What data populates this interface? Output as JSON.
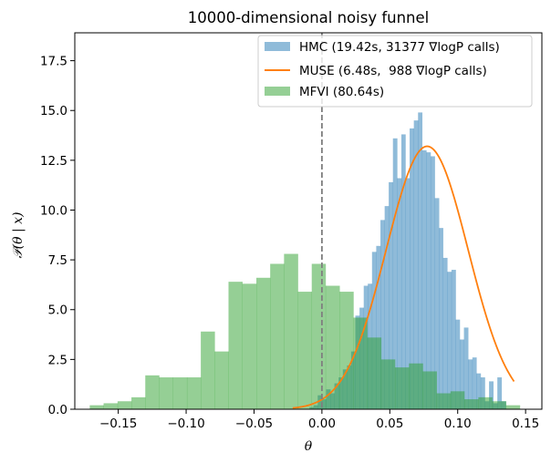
{
  "chart_data": {
    "type": "histogram",
    "title": "10000-dimensional noisy funnel",
    "xlabel": "θ",
    "ylabel": "𝒫(θ | x)",
    "xlim": [
      -0.182,
      0.162
    ],
    "ylim": [
      0,
      18.9
    ],
    "xticks": [
      -0.15,
      -0.1,
      -0.05,
      0.0,
      0.05,
      0.1,
      0.15
    ],
    "xtick_labels": [
      "−0.15",
      "−0.10",
      "−0.05",
      "0.00",
      "0.05",
      "0.10",
      "0.15"
    ],
    "yticks": [
      0.0,
      2.5,
      5.0,
      7.5,
      10.0,
      12.5,
      15.0,
      17.5
    ],
    "ytick_labels": [
      "0.0",
      "2.5",
      "5.0",
      "7.5",
      "10.0",
      "12.5",
      "15.0",
      "17.5"
    ],
    "reference_line": {
      "x": 0.0,
      "style": "dashed",
      "color": "#7f7f7f"
    },
    "legend_position": "top-right",
    "colors": {
      "hmc": "#1f77b4",
      "muse": "#ff7f0e",
      "mfvi": "#2ca02c"
    },
    "series": [
      {
        "name": "HMC (19.42s, 31377 ∇logP calls)",
        "kind": "histogram",
        "bins": [
          [
            -0.0185,
            -0.0154,
            0.0
          ],
          [
            -0.0154,
            -0.0123,
            0.0
          ],
          [
            -0.0123,
            -0.0092,
            0.0
          ],
          [
            -0.0092,
            -0.0062,
            0.1
          ],
          [
            -0.0062,
            -0.0031,
            0.2
          ],
          [
            -0.0031,
            0.0,
            0.7
          ],
          [
            0.0,
            0.0031,
            0.5
          ],
          [
            0.0031,
            0.0062,
            1.0
          ],
          [
            0.0062,
            0.0092,
            0.8
          ],
          [
            0.0092,
            0.0123,
            1.3
          ],
          [
            0.0123,
            0.0154,
            1.6
          ],
          [
            0.0154,
            0.0185,
            2.0
          ],
          [
            0.0185,
            0.0215,
            2.2
          ],
          [
            0.0215,
            0.0246,
            2.9
          ],
          [
            0.0246,
            0.0277,
            4.7
          ],
          [
            0.0277,
            0.0308,
            5.1
          ],
          [
            0.0308,
            0.0338,
            6.2
          ],
          [
            0.0338,
            0.0369,
            6.3
          ],
          [
            0.0369,
            0.04,
            7.9
          ],
          [
            0.04,
            0.0431,
            8.2
          ],
          [
            0.0431,
            0.0462,
            9.5
          ],
          [
            0.0462,
            0.0492,
            10.2
          ],
          [
            0.0492,
            0.0523,
            11.4
          ],
          [
            0.0523,
            0.0554,
            13.6
          ],
          [
            0.0554,
            0.0585,
            11.6
          ],
          [
            0.0585,
            0.0615,
            13.8
          ],
          [
            0.0615,
            0.0646,
            11.6
          ],
          [
            0.0646,
            0.0677,
            14.1
          ],
          [
            0.0677,
            0.0708,
            14.5
          ],
          [
            0.0708,
            0.0738,
            14.9
          ],
          [
            0.0738,
            0.0769,
            13.0
          ],
          [
            0.0769,
            0.08,
            12.9
          ],
          [
            0.08,
            0.0831,
            12.7
          ],
          [
            0.0831,
            0.0862,
            10.6
          ],
          [
            0.0862,
            0.0892,
            9.1
          ],
          [
            0.0892,
            0.0923,
            7.6
          ],
          [
            0.0923,
            0.0954,
            6.9
          ],
          [
            0.0954,
            0.0985,
            7.0
          ],
          [
            0.0985,
            0.1015,
            4.5
          ],
          [
            0.1015,
            0.1046,
            3.5
          ],
          [
            0.1046,
            0.1077,
            4.1
          ],
          [
            0.1077,
            0.1108,
            2.5
          ],
          [
            0.1108,
            0.1138,
            2.6
          ],
          [
            0.1138,
            0.1169,
            1.8
          ],
          [
            0.1169,
            0.12,
            1.6
          ],
          [
            0.12,
            0.1231,
            0.4
          ],
          [
            0.1231,
            0.1262,
            1.4
          ],
          [
            0.1262,
            0.1292,
            0.3
          ],
          [
            0.1292,
            0.1323,
            1.6
          ],
          [
            0.1323,
            0.1354,
            0.4
          ]
        ]
      },
      {
        "name": "MUSE (6.48s,  988 ∇logP calls)",
        "kind": "line",
        "mean": 0.0775,
        "sd": 0.0302,
        "peak": 13.2,
        "x_range": [
          -0.0215,
          0.1415
        ]
      },
      {
        "name": "MFVI (80.64s)",
        "kind": "histogram",
        "bins": [
          [
            -0.171,
            -0.1608,
            0.2
          ],
          [
            -0.1608,
            -0.1505,
            0.3
          ],
          [
            -0.1505,
            -0.1403,
            0.4
          ],
          [
            -0.1403,
            -0.1301,
            0.6
          ],
          [
            -0.1301,
            -0.1199,
            1.7
          ],
          [
            -0.1199,
            -0.1097,
            1.6
          ],
          [
            -0.1097,
            -0.0994,
            1.6
          ],
          [
            -0.0994,
            -0.0892,
            1.6
          ],
          [
            -0.0892,
            -0.079,
            3.9
          ],
          [
            -0.079,
            -0.0688,
            2.9
          ],
          [
            -0.0688,
            -0.0586,
            6.4
          ],
          [
            -0.0586,
            -0.0483,
            6.3
          ],
          [
            -0.0483,
            -0.0381,
            6.6
          ],
          [
            -0.0381,
            -0.0279,
            7.3
          ],
          [
            -0.0279,
            -0.0177,
            7.8
          ],
          [
            -0.0177,
            -0.0075,
            5.9
          ],
          [
            -0.0075,
            0.0027,
            7.3
          ],
          [
            0.0027,
            0.013,
            6.2
          ],
          [
            0.013,
            0.0232,
            5.9
          ],
          [
            0.0232,
            0.0334,
            4.6
          ],
          [
            0.0334,
            0.0436,
            3.6
          ],
          [
            0.0436,
            0.0538,
            2.5
          ],
          [
            0.0538,
            0.0641,
            2.1
          ],
          [
            0.0641,
            0.0743,
            2.3
          ],
          [
            0.0743,
            0.0845,
            1.9
          ],
          [
            0.0845,
            0.0947,
            0.8
          ],
          [
            0.0947,
            0.1049,
            0.9
          ],
          [
            0.1049,
            0.1152,
            0.5
          ],
          [
            0.1152,
            0.1254,
            0.6
          ],
          [
            0.1254,
            0.1356,
            0.4
          ],
          [
            0.1356,
            0.1458,
            0.2
          ]
        ]
      }
    ]
  }
}
